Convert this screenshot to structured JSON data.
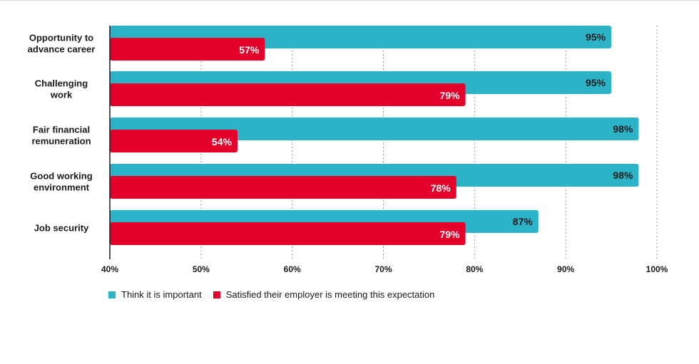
{
  "chart_data": {
    "type": "bar",
    "orientation": "horizontal",
    "categories": [
      [
        "Opportunity to",
        "advance career"
      ],
      [
        "Challenging",
        "work"
      ],
      [
        "Fair financial",
        "remuneration"
      ],
      [
        "Good working",
        "environment"
      ],
      [
        "Job security"
      ]
    ],
    "series": [
      {
        "name": "Think it is important",
        "color": "#2db3c8",
        "values": [
          95,
          95,
          98,
          98,
          87
        ],
        "labels": [
          "95%",
          "95%",
          "98%",
          "98%",
          "87%"
        ]
      },
      {
        "name": "Satisfied their employer is meeting this expectation",
        "color": "#e4002b",
        "values": [
          57,
          79,
          54,
          78,
          79
        ],
        "labels": [
          "57%",
          "79%",
          "54%",
          "78%",
          "79%"
        ]
      }
    ],
    "xlim": [
      40,
      100
    ],
    "xticks": [
      40,
      50,
      60,
      70,
      80,
      90,
      100
    ],
    "xtick_labels": [
      "40%",
      "50%",
      "60%",
      "70%",
      "80%",
      "90%",
      "100%"
    ],
    "grid": "vertical dotted",
    "legend": "bottom-left"
  }
}
